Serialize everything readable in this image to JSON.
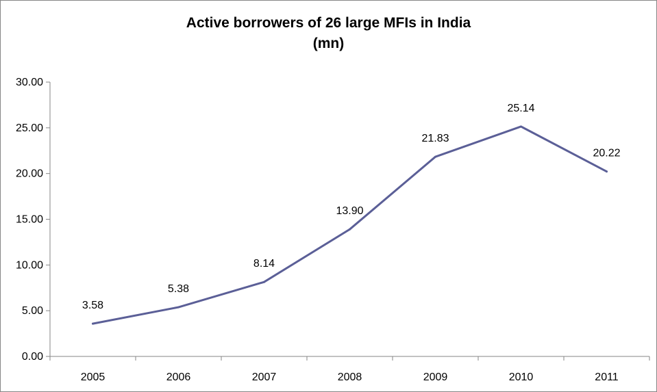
{
  "chart_data": {
    "type": "line",
    "title_lines": [
      "Active borrowers of 26 large MFIs in India",
      "(mn)"
    ],
    "xlabel": "",
    "ylabel": "",
    "categories": [
      "2005",
      "2006",
      "2007",
      "2008",
      "2009",
      "2010",
      "2011"
    ],
    "series": [
      {
        "values": [
          3.58,
          5.38,
          8.14,
          13.9,
          21.83,
          25.14,
          20.22
        ],
        "labels": [
          "3.58",
          "5.38",
          "8.14",
          "13.90",
          "21.83",
          "25.14",
          "20.22"
        ],
        "color": "#5b5f97"
      }
    ],
    "ylim": [
      0,
      30
    ],
    "yticks": [
      "0.00",
      "5.00",
      "10.00",
      "15.00",
      "20.00",
      "25.00",
      "30.00"
    ],
    "gridlines": false,
    "legend": "none"
  }
}
